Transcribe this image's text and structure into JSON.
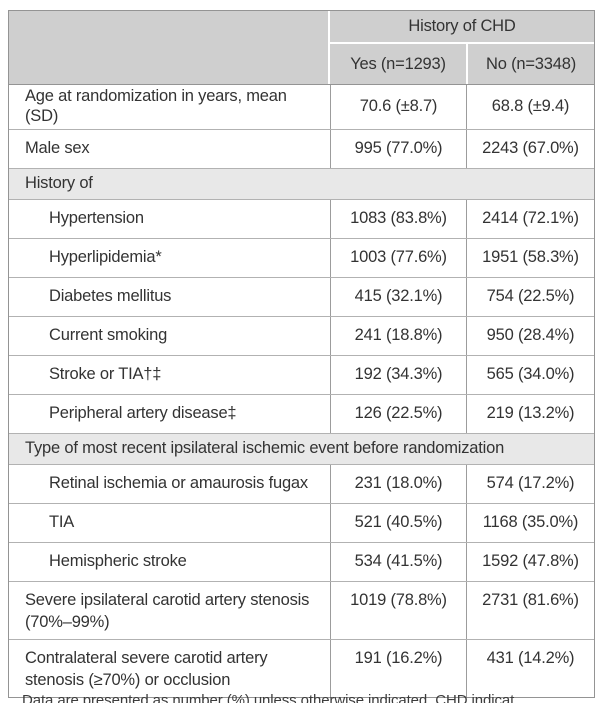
{
  "header": {
    "group_label": "History of CHD",
    "col_yes": "Yes (n=1293)",
    "col_no": "No (n=3348)"
  },
  "rows": [
    {
      "type": "data",
      "indent": false,
      "label": "Age at randomization in years, mean (SD)",
      "yes": "70.6 (±8.7)",
      "no": "68.8 (±9.4)"
    },
    {
      "type": "data",
      "indent": false,
      "label": "Male sex",
      "yes": "995 (77.0%)",
      "no": "2243 (67.0%)"
    },
    {
      "type": "section",
      "label": "History of"
    },
    {
      "type": "data",
      "indent": true,
      "label": "Hypertension",
      "yes": "1083 (83.8%)",
      "no": "2414 (72.1%)"
    },
    {
      "type": "data",
      "indent": true,
      "label": "Hyperlipidemia*",
      "yes": "1003 (77.6%)",
      "no": "1951 (58.3%)"
    },
    {
      "type": "data",
      "indent": true,
      "label": "Diabetes mellitus",
      "yes": "415 (32.1%)",
      "no": "754 (22.5%)"
    },
    {
      "type": "data",
      "indent": true,
      "label": "Current smoking",
      "yes": "241 (18.8%)",
      "no": "950 (28.4%)"
    },
    {
      "type": "data",
      "indent": true,
      "label": "Stroke or TIA†‡",
      "yes": "192 (34.3%)",
      "no": "565 (34.0%)"
    },
    {
      "type": "data",
      "indent": true,
      "label": "Peripheral artery disease‡",
      "yes": "126 (22.5%)",
      "no": "219 (13.2%)"
    },
    {
      "type": "section",
      "label": "Type of most recent ipsilateral ischemic event before randomization"
    },
    {
      "type": "data",
      "indent": true,
      "label": "Retinal ischemia or amaurosis fugax",
      "yes": "231 (18.0%)",
      "no": "574 (17.2%)"
    },
    {
      "type": "data",
      "indent": true,
      "label": "TIA",
      "yes": "521 (40.5%)",
      "no": "1168 (35.0%)"
    },
    {
      "type": "data",
      "indent": true,
      "label": "Hemispheric stroke",
      "yes": "534 (41.5%)",
      "no": "1592 (47.8%)"
    },
    {
      "type": "data2",
      "indent": false,
      "label": "Severe ipsilateral carotid artery stenosis (70%–99%)",
      "yes": "1019 (78.8%)",
      "no": "2731 (81.6%)"
    },
    {
      "type": "data2",
      "indent": false,
      "label": "Contralateral severe carotid artery stenosis (≥70%) or occlusion",
      "yes": "191 (16.2%)",
      "no": "431 (14.2%)"
    }
  ],
  "footnote_fragment": "Data are presented as number (%) unless otherwise indicated. CHD indicat",
  "colors": {
    "header_bg": "#cfcfcf",
    "section_bg": "#e8e8e8",
    "border_outer": "#949494",
    "border_horizontal": "#b2b2b2",
    "border_vertical": "#9c9c9c",
    "text": "#333333"
  }
}
